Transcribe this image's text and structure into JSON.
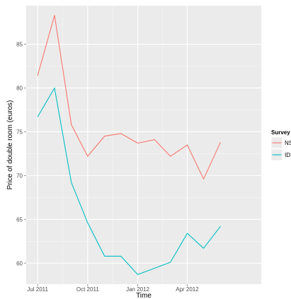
{
  "chart_data": {
    "type": "line",
    "title": "",
    "xlabel": "Time",
    "ylabel": "Price of double room (euros)",
    "x_ticks": [
      {
        "value": "2011-07-01",
        "label": "Jul 2011"
      },
      {
        "value": "2011-10-01",
        "label": "Oct 2011"
      },
      {
        "value": "2012-01-01",
        "label": "Jan 2012"
      },
      {
        "value": "2012-04-01",
        "label": "Apr 2012"
      }
    ],
    "xlim": [
      "2011-06-10",
      "2012-08-15"
    ],
    "y_ticks": [
      60,
      65,
      70,
      75,
      80,
      85
    ],
    "ylim": [
      57.6,
      89.4
    ],
    "grid": true,
    "legend": {
      "title": "Survey",
      "placement": "right"
    },
    "series": [
      {
        "name": "NS",
        "color": "#F8766D",
        "points": [
          {
            "x": "2011-07-01",
            "y": 81.4
          },
          {
            "x": "2011-08-01",
            "y": 88.3
          },
          {
            "x": "2011-09-01",
            "y": 75.8
          },
          {
            "x": "2011-10-01",
            "y": 72.2
          },
          {
            "x": "2011-11-01",
            "y": 74.5
          },
          {
            "x": "2011-12-01",
            "y": 74.8
          },
          {
            "x": "2012-01-01",
            "y": 73.7
          },
          {
            "x": "2012-02-01",
            "y": 74.1
          },
          {
            "x": "2012-03-01",
            "y": 72.2
          },
          {
            "x": "2012-04-01",
            "y": 73.5
          },
          {
            "x": "2012-05-01",
            "y": 69.6
          },
          {
            "x": "2012-06-01",
            "y": 73.8
          }
        ]
      },
      {
        "name": "IDS",
        "color": "#00BFC4",
        "points": [
          {
            "x": "2011-07-01",
            "y": 76.7
          },
          {
            "x": "2011-08-01",
            "y": 80.0
          },
          {
            "x": "2011-09-01",
            "y": 69.2
          },
          {
            "x": "2011-10-01",
            "y": 64.6
          },
          {
            "x": "2011-11-01",
            "y": 60.8
          },
          {
            "x": "2011-12-01",
            "y": 60.8
          },
          {
            "x": "2012-01-01",
            "y": 58.7
          },
          {
            "x": "2012-03-01",
            "y": 60.1
          },
          {
            "x": "2012-04-01",
            "y": 63.4
          },
          {
            "x": "2012-05-01",
            "y": 61.7
          },
          {
            "x": "2012-06-01",
            "y": 64.2
          }
        ]
      }
    ]
  },
  "style": {
    "panel_bg": "#EBEBEB",
    "grid_color": "#FFFFFF",
    "tick_text_color": "#4D4D4D",
    "axis_title_color": "#000000",
    "legend_key_bg": "#EBEBEB"
  }
}
